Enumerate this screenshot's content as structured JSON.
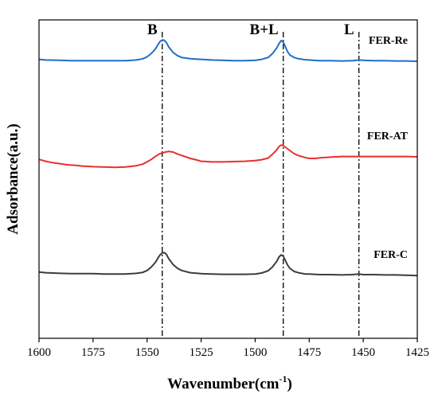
{
  "chart_data": {
    "type": "line",
    "xlabel_main": "Wavenumber(cm",
    "xlabel_sup": "-1",
    "xlabel_end": ")",
    "ylabel": "Adsorbance(a.u.)",
    "xlim": [
      1600,
      1425
    ],
    "x_reversed": true,
    "ylim": [
      0,
      1
    ],
    "y_ticks_shown": false,
    "grid": false,
    "x_ticks": [
      1600,
      1575,
      1550,
      1525,
      1500,
      1475,
      1450,
      1425
    ],
    "x_tick_labels": [
      "1600",
      "1575",
      "1550",
      "1525",
      "1500",
      "1475",
      "1450",
      "1425"
    ],
    "annotations": [
      {
        "label": "B",
        "x": 1543
      },
      {
        "label": "B+L",
        "x": 1487
      },
      {
        "label": "L",
        "x": 1452
      }
    ],
    "series": [
      {
        "name": "FER-Re",
        "color": "#1f6ec9",
        "x": [
          1600,
          1597,
          1590,
          1585,
          1580,
          1575,
          1570,
          1565,
          1560,
          1555,
          1552,
          1550,
          1548,
          1546,
          1545,
          1544,
          1543,
          1542,
          1541,
          1540,
          1538,
          1536,
          1534,
          1530,
          1525,
          1520,
          1515,
          1510,
          1505,
          1500,
          1497,
          1494,
          1492,
          1490,
          1489,
          1488,
          1487,
          1486,
          1485,
          1484,
          1482,
          1480,
          1477,
          1475,
          1470,
          1465,
          1460,
          1455,
          1452,
          1450,
          1445,
          1440,
          1435,
          1430,
          1425
        ],
        "y": [
          0.876,
          0.874,
          0.873,
          0.872,
          0.872,
          0.872,
          0.872,
          0.872,
          0.872,
          0.874,
          0.878,
          0.884,
          0.895,
          0.91,
          0.922,
          0.932,
          0.937,
          0.936,
          0.928,
          0.915,
          0.898,
          0.888,
          0.882,
          0.878,
          0.876,
          0.874,
          0.873,
          0.872,
          0.872,
          0.873,
          0.876,
          0.882,
          0.894,
          0.912,
          0.925,
          0.935,
          0.93,
          0.915,
          0.9,
          0.89,
          0.882,
          0.878,
          0.875,
          0.874,
          0.872,
          0.872,
          0.871,
          0.872,
          0.874,
          0.873,
          0.872,
          0.872,
          0.871,
          0.871,
          0.87
        ]
      },
      {
        "name": "FER-AT",
        "color": "#e8302c",
        "x": [
          1600,
          1597,
          1594,
          1590,
          1587,
          1583,
          1580,
          1575,
          1570,
          1565,
          1560,
          1555,
          1552,
          1550,
          1548,
          1546,
          1544,
          1542,
          1540,
          1538,
          1536,
          1533,
          1530,
          1527,
          1525,
          1520,
          1515,
          1510,
          1505,
          1500,
          1497,
          1494,
          1492,
          1490,
          1489,
          1488,
          1487,
          1486,
          1484,
          1482,
          1480,
          1477,
          1475,
          1472,
          1470,
          1465,
          1460,
          1455,
          1452,
          1450,
          1445,
          1440,
          1435,
          1430,
          1425
        ],
        "y": [
          0.562,
          0.556,
          0.552,
          0.548,
          0.545,
          0.543,
          0.541,
          0.539,
          0.538,
          0.537,
          0.538,
          0.542,
          0.547,
          0.554,
          0.562,
          0.572,
          0.58,
          0.584,
          0.587,
          0.585,
          0.579,
          0.572,
          0.565,
          0.56,
          0.556,
          0.554,
          0.554,
          0.555,
          0.556,
          0.558,
          0.561,
          0.566,
          0.578,
          0.592,
          0.602,
          0.607,
          0.605,
          0.6,
          0.59,
          0.58,
          0.574,
          0.568,
          0.565,
          0.565,
          0.567,
          0.569,
          0.571,
          0.571,
          0.571,
          0.571,
          0.571,
          0.571,
          0.571,
          0.571,
          0.57
        ]
      },
      {
        "name": "FER-C",
        "color": "#3c3c3c",
        "x": [
          1600,
          1597,
          1590,
          1585,
          1580,
          1575,
          1570,
          1565,
          1560,
          1555,
          1552,
          1550,
          1548,
          1546,
          1545,
          1544,
          1543,
          1542,
          1541,
          1540,
          1538,
          1536,
          1534,
          1530,
          1525,
          1520,
          1515,
          1510,
          1505,
          1500,
          1497,
          1494,
          1492,
          1490,
          1489,
          1488,
          1487,
          1486,
          1485,
          1484,
          1482,
          1480,
          1477,
          1475,
          1470,
          1465,
          1460,
          1455,
          1452,
          1450,
          1445,
          1440,
          1435,
          1430,
          1425
        ],
        "y": [
          0.208,
          0.206,
          0.204,
          0.203,
          0.203,
          0.203,
          0.202,
          0.202,
          0.202,
          0.204,
          0.207,
          0.213,
          0.224,
          0.24,
          0.252,
          0.262,
          0.268,
          0.269,
          0.263,
          0.25,
          0.232,
          0.22,
          0.213,
          0.206,
          0.203,
          0.202,
          0.201,
          0.201,
          0.201,
          0.202,
          0.205,
          0.212,
          0.224,
          0.242,
          0.255,
          0.262,
          0.258,
          0.244,
          0.23,
          0.22,
          0.21,
          0.206,
          0.202,
          0.202,
          0.2,
          0.2,
          0.199,
          0.2,
          0.202,
          0.2,
          0.2,
          0.199,
          0.199,
          0.198,
          0.197
        ]
      }
    ]
  }
}
